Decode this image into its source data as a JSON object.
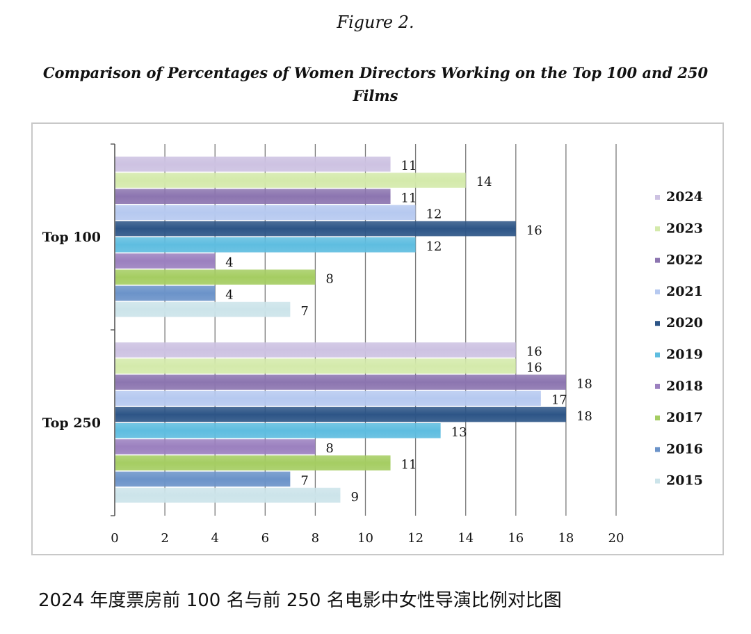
{
  "figure_label": "Figure 2.",
  "caption": "2024 年度票房前 100 名与前 250 名电影中女性导演比例对比图",
  "chart_data": {
    "type": "bar",
    "orientation": "horizontal",
    "title": "Comparison of Percentages of Women Directors Working on the Top 100 and 250 Films",
    "title_lines": [
      "Comparison of Percentages of Women Directors Working on the Top 100 and 250",
      "Films"
    ],
    "categories": [
      "Top 100",
      "Top 250"
    ],
    "xlim": [
      0,
      20
    ],
    "x_ticks": [
      "0",
      "2",
      "4",
      "6",
      "8",
      "10",
      "12",
      "14",
      "16",
      "18",
      "20"
    ],
    "grid": true,
    "legend_position": "right",
    "series": [
      {
        "name": "2024",
        "color": "#cdc2e2",
        "values": [
          11,
          16
        ]
      },
      {
        "name": "2023",
        "color": "#d4eaab",
        "values": [
          14,
          16
        ]
      },
      {
        "name": "2022",
        "color": "#8c75b0",
        "values": [
          11,
          18
        ]
      },
      {
        "name": "2021",
        "color": "#b6c9f0",
        "values": [
          12,
          17
        ]
      },
      {
        "name": "2020",
        "color": "#2d5587",
        "values": [
          16,
          18
        ]
      },
      {
        "name": "2019",
        "color": "#5ebde0",
        "values": [
          12,
          13
        ]
      },
      {
        "name": "2018",
        "color": "#9b80bf",
        "values": [
          4,
          8
        ]
      },
      {
        "name": "2017",
        "color": "#a5cd62",
        "values": [
          8,
          11
        ]
      },
      {
        "name": "2016",
        "color": "#6b93c9",
        "values": [
          4,
          7
        ]
      },
      {
        "name": "2015",
        "color": "#cce4ea",
        "values": [
          7,
          9
        ]
      }
    ]
  }
}
